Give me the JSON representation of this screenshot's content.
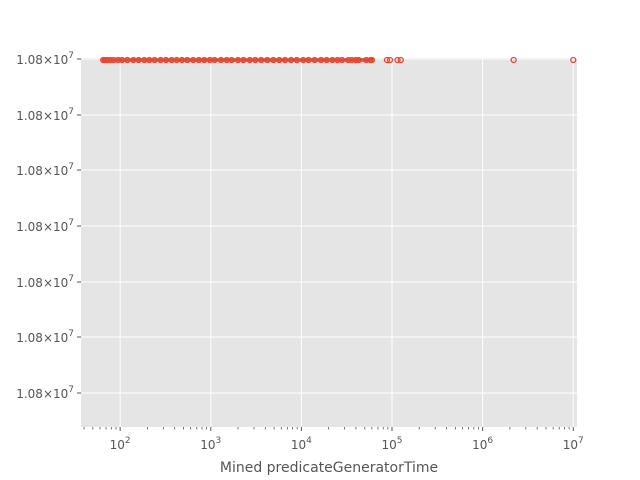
{
  "chart_data": {
    "type": "scatter",
    "title": "",
    "xlabel": "Mined predicateGeneratorTime",
    "ylabel": "",
    "x_scale": "log",
    "xlim": [
      37,
      11000000
    ],
    "x_major_ticks": [
      {
        "value": 100,
        "base": "10",
        "exp": "2"
      },
      {
        "value": 1000,
        "base": "10",
        "exp": "3"
      },
      {
        "value": 10000,
        "base": "10",
        "exp": "4"
      },
      {
        "value": 100000,
        "base": "10",
        "exp": "5"
      },
      {
        "value": 1000000,
        "base": "10",
        "exp": "6"
      },
      {
        "value": 10000000,
        "base": "10",
        "exp": "7"
      }
    ],
    "y_tick_labels": [
      {
        "mantissa": "1.08",
        "base": "10",
        "exp": "7"
      },
      {
        "mantissa": "1.08",
        "base": "10",
        "exp": "7"
      },
      {
        "mantissa": "1.08",
        "base": "10",
        "exp": "7"
      },
      {
        "mantissa": "1.08",
        "base": "10",
        "exp": "7"
      },
      {
        "mantissa": "1.08",
        "base": "10",
        "exp": "7"
      },
      {
        "mantissa": "1.08",
        "base": "10",
        "exp": "7"
      },
      {
        "mantissa": "1.08",
        "base": "10",
        "exp": "7"
      }
    ],
    "y_value": 10800000,
    "grid": true,
    "background_color": "#e5e5e5",
    "grid_color": "#ffffff",
    "marker_color": "#e24a33",
    "marker": "circle-open",
    "x_points": [
      65,
      68,
      72,
      78,
      85,
      95,
      105,
      120,
      140,
      160,
      185,
      210,
      240,
      280,
      320,
      370,
      420,
      480,
      550,
      640,
      740,
      850,
      980,
      1100,
      1300,
      1500,
      1700,
      2000,
      2300,
      2700,
      3100,
      3600,
      4200,
      4900,
      5700,
      6600,
      7700,
      8900,
      10500,
      12000,
      14000,
      16500,
      19000,
      22000,
      25000,
      28000,
      33000,
      36000,
      40000,
      43000,
      52000,
      58000,
      60000,
      88000,
      95000,
      115000,
      125000,
      2200000,
      10000000
    ]
  }
}
